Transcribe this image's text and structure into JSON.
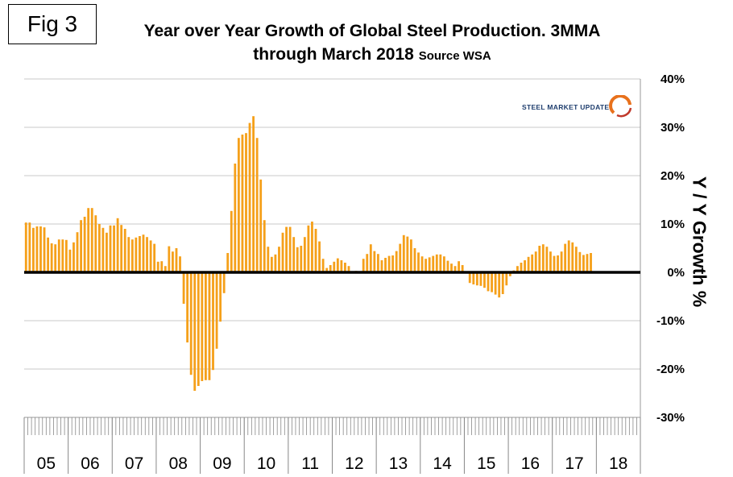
{
  "figure_label": "Fig 3",
  "title_main": "Year over Year Growth of Global Steel Production. 3MMA through March 2018",
  "title_source": "Source WSA",
  "logo_text": "STEEL MARKET UPDATE",
  "colors": {
    "bar": "#f5a01a",
    "zero_line": "#000000",
    "grid": "#c8c8c8"
  },
  "chart_data": {
    "type": "bar",
    "title": "Year over Year Growth of Global Steel Production. 3MMA through March 2018",
    "ylabel": "Y / Y Growth %",
    "ylim": [
      -30,
      40
    ],
    "y_ticks": [
      "-30%",
      "-20%",
      "-10%",
      "0%",
      "10%",
      "20%",
      "30%",
      "40%"
    ],
    "x_tick_labels": [
      "05",
      "06",
      "07",
      "08",
      "09",
      "10",
      "11",
      "12",
      "13",
      "14",
      "15",
      "16",
      "17",
      "18"
    ],
    "grid": true,
    "series": [
      {
        "values": [
          10.3,
          10.3,
          9.2,
          9.5,
          9.5,
          9.3,
          7.2,
          6.0,
          5.8,
          6.8,
          6.8,
          6.7,
          4.7,
          6.2,
          8.3,
          10.8,
          11.5,
          13.3,
          13.3,
          11.8,
          10.0,
          9.2,
          8.2,
          9.7,
          9.7,
          11.2,
          9.8,
          9.0,
          7.3,
          6.8,
          7.2,
          7.5,
          7.8,
          7.3,
          6.6,
          5.9,
          2.2,
          2.3,
          1.3,
          5.4,
          4.3,
          5.0,
          3.3,
          -6.5,
          -14.5,
          -21.2,
          -24.5,
          -23.5,
          -22.5,
          -22.3,
          -22.3,
          -20.2,
          -15.8,
          -10.2,
          -4.3,
          4.0,
          12.7,
          22.5,
          27.8,
          28.5,
          28.8,
          30.9,
          32.3,
          27.8,
          19.2,
          10.8,
          5.3,
          3.2,
          3.7,
          5.3,
          8.2,
          9.4,
          9.4,
          7.3,
          5.2,
          5.5,
          7.3,
          9.7,
          10.5,
          9.0,
          6.4,
          2.8,
          0.9,
          1.5,
          2.2,
          2.9,
          2.5,
          2.0,
          1.3,
          0.2,
          0.3,
          0.2,
          2.8,
          3.8,
          5.8,
          4.4,
          3.8,
          2.5,
          3.0,
          3.4,
          3.5,
          4.4,
          5.9,
          7.7,
          7.4,
          6.8,
          5.0,
          4.1,
          3.3,
          2.8,
          3.1,
          3.4,
          3.7,
          3.7,
          3.3,
          2.4,
          1.8,
          1.3,
          2.3,
          1.5,
          -0.2,
          -2.2,
          -2.5,
          -2.7,
          -2.8,
          -3.2,
          -3.9,
          -4.1,
          -4.6,
          -5.2,
          -4.5,
          -2.7,
          -0.8,
          0.4,
          1.3,
          2.0,
          2.5,
          3.2,
          3.7,
          4.3,
          5.5,
          5.8,
          5.3,
          4.3,
          3.4,
          3.5,
          4.3,
          5.9,
          6.6,
          6.2,
          5.3,
          4.2,
          3.6,
          3.8,
          4.0
        ]
      }
    ]
  }
}
